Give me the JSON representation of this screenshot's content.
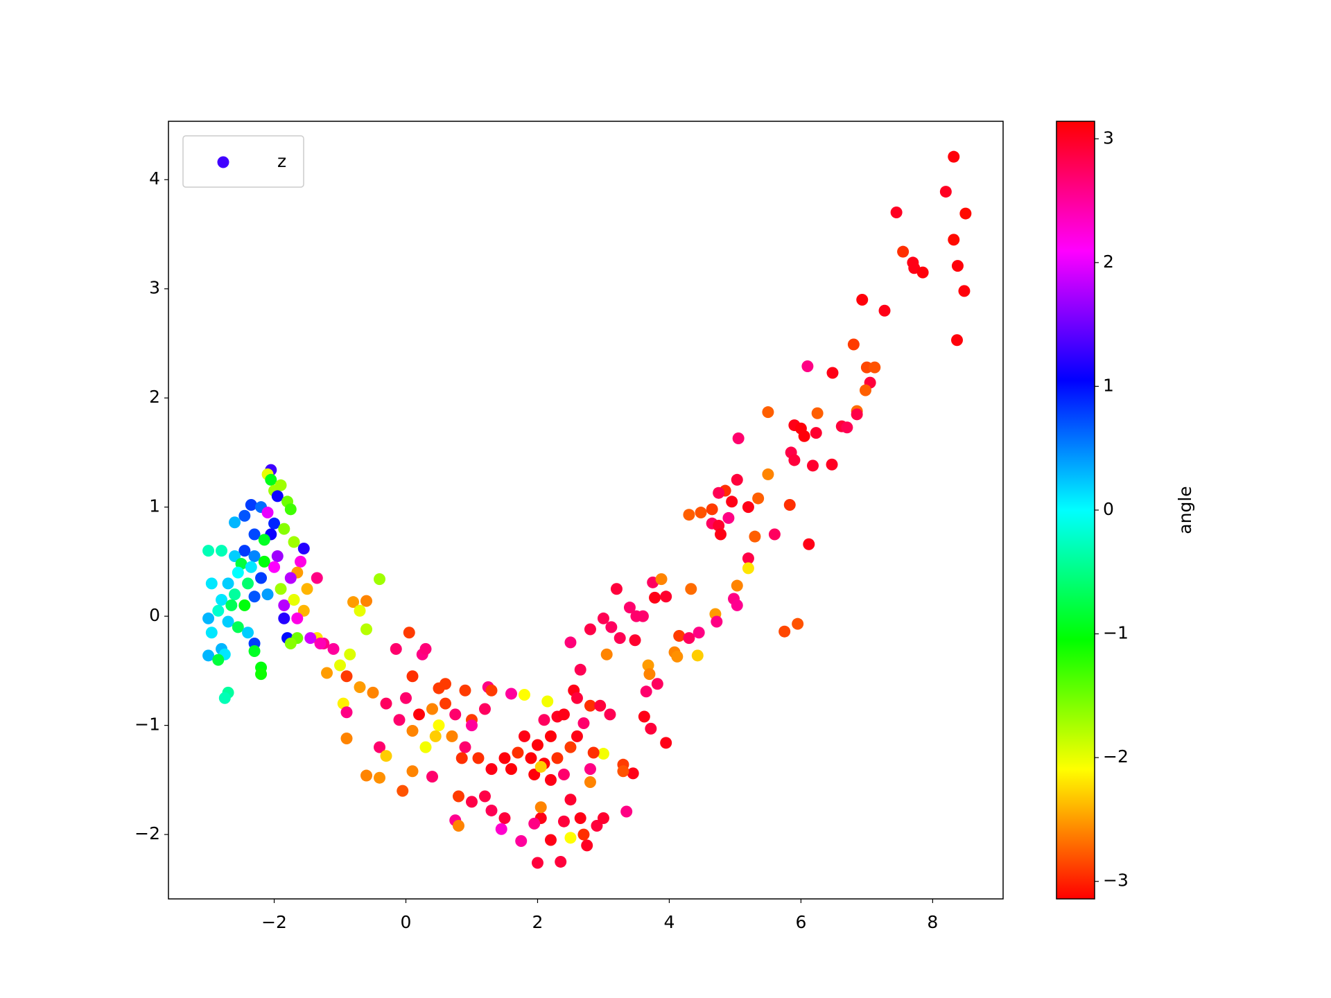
{
  "chart_data": {
    "type": "scatter",
    "legend": "upper left",
    "xlim": [
      -3.606,
      9.07
    ],
    "ylim": [
      -2.59,
      4.535
    ],
    "xticks": [
      {
        "value": -2,
        "label": "−2"
      },
      0,
      2,
      4,
      6,
      8
    ],
    "yticks": [
      {
        "value": -2,
        "label": "−2"
      },
      {
        "value": -1,
        "label": "−1"
      },
      0,
      1,
      2,
      3,
      4
    ],
    "colorbar": {
      "label": "angle",
      "colormap": "hsv",
      "clim": [
        -3.1416,
        3.1416
      ],
      "ticks": [
        {
          "value": -3,
          "label": "−3"
        },
        {
          "value": -2,
          "label": "−2"
        },
        {
          "value": -1,
          "label": "−1"
        },
        0,
        1,
        2,
        3
      ]
    },
    "series": [
      {
        "name": "z",
        "color": "#4000ff",
        "x": [
          8.32,
          8.2,
          8.5,
          7.45,
          8.32,
          7.55,
          7.7,
          7.72,
          7.85,
          8.38,
          8.48,
          6.93,
          7.27,
          8.37,
          6.8,
          6.1,
          6.48,
          7.0,
          7.12,
          7.05,
          6.98,
          5.5,
          6.85,
          6.25,
          6.85,
          5.9,
          6.62,
          6.7,
          6.0,
          6.23,
          6.05,
          5.05,
          5.85,
          5.9,
          6.47,
          6.18,
          5.5,
          5.03,
          4.85,
          4.75,
          5.35,
          4.95,
          4.65,
          5.2,
          5.83,
          4.3,
          4.48,
          4.9,
          4.65,
          4.75,
          4.78,
          5.6,
          5.3,
          6.12,
          5.2,
          5.2,
          5.03,
          4.98,
          5.03,
          3.75,
          3.88,
          4.33,
          3.78,
          3.95,
          3.2,
          3.4,
          3.5,
          3.6,
          4.7,
          4.72,
          5.95,
          5.75,
          3.0,
          3.12,
          2.8,
          3.25,
          3.48,
          2.5,
          4.15,
          4.3,
          4.45,
          4.08,
          4.12,
          4.43,
          3.05,
          3.68,
          3.7,
          3.82,
          3.65,
          2.65,
          3.95,
          3.62,
          3.72,
          2.55,
          2.6,
          2.15,
          1.8,
          1.6,
          1.25,
          1.3,
          0.9,
          0.6,
          0.5,
          0.1,
          0.05,
          -0.15,
          0.25,
          0.3,
          -0.4,
          -0.6,
          -0.8,
          -0.7,
          -0.6,
          2.1,
          2.3,
          2.4,
          2.8,
          2.95,
          3.1,
          2.7,
          2.2,
          2.0,
          1.8,
          1.7,
          1.5,
          1.9,
          2.1,
          2.3,
          2.5,
          2.6,
          1.6,
          1.95,
          2.2,
          2.4,
          2.05,
          1.3,
          1.1,
          0.9,
          0.7,
          0.5,
          0.3,
          0.1,
          -0.1,
          -0.3,
          -0.5,
          -0.7,
          -0.9,
          -1.0,
          -0.85,
          -1.1,
          -1.25,
          -1.35,
          -1.2,
          -0.95,
          -0.9,
          -0.9,
          -0.6,
          -0.4,
          -0.4,
          -0.05,
          -0.3,
          0.1,
          0.4,
          0.75,
          0.8,
          0.8,
          1.0,
          1.2,
          1.3,
          1.5,
          1.45,
          1.75,
          2.0,
          2.2,
          2.35,
          2.5,
          2.75,
          2.7,
          2.9,
          3.0,
          2.65,
          2.5,
          2.4,
          2.05,
          1.95,
          2.05,
          3.35,
          3.45,
          3.3,
          3.3,
          3.0,
          2.85,
          2.8,
          2.8,
          1.2,
          1.0,
          0.75,
          0.6,
          0.4,
          0.2,
          0,
          0.45,
          1.0,
          0.85,
          -2.05,
          -2.1,
          -2.05,
          -1.9,
          -2.0,
          -1.95,
          -1.8,
          -2.35,
          -2.2,
          -2.1,
          -1.75,
          -2.45,
          -2.6,
          -2.0,
          -1.85,
          -2.3,
          -2.05,
          -2.15,
          -1.7,
          -1.55,
          -2.45,
          -2.6,
          -2.8,
          -3.0,
          -2.3,
          -2.15,
          -1.95,
          -2.5,
          -2.35,
          -2.0,
          -1.6,
          -1.65,
          -1.75,
          -2.55,
          -2.7,
          -2.95,
          -2.4,
          -2.2,
          -2.6,
          -2.8,
          -2.3,
          -1.9,
          -1.5,
          -1.35,
          -2.1,
          -2.65,
          -2.85,
          -2.45,
          -1.85,
          -1.7,
          -1.55,
          -1.65,
          -1.85,
          -3.0,
          -2.7,
          -2.95,
          -2.55,
          -2.4,
          -1.8,
          -1.65,
          -1.75,
          -2.3,
          -2.3,
          -2.8,
          -2.75,
          -3.0,
          -2.85,
          -2.2,
          -2.2,
          -2.7,
          -2.75,
          -1.45,
          -1.3
        ],
        "values": [
          4.21,
          3.89,
          3.69,
          3.7,
          3.45,
          3.34,
          3.24,
          3.19,
          3.15,
          3.21,
          2.98,
          2.9,
          2.8,
          2.53,
          2.49,
          2.29,
          2.23,
          2.28,
          2.28,
          2.14,
          2.07,
          1.87,
          1.88,
          1.86,
          1.85,
          1.75,
          1.74,
          1.73,
          1.72,
          1.68,
          1.65,
          1.63,
          1.5,
          1.43,
          1.39,
          1.38,
          1.3,
          1.25,
          1.15,
          1.13,
          1.08,
          1.05,
          0.98,
          1.0,
          1.02,
          0.93,
          0.95,
          0.9,
          0.85,
          0.83,
          0.75,
          0.75,
          0.73,
          0.66,
          0.53,
          0.44,
          0.28,
          0.16,
          0.1,
          0.31,
          0.34,
          0.25,
          0.17,
          0.18,
          0.25,
          0.08,
          0,
          0,
          0.02,
          -0.05,
          -0.07,
          -0.14,
          -0.02,
          -0.1,
          -0.12,
          -0.2,
          -0.22,
          -0.24,
          -0.18,
          -0.2,
          -0.15,
          -0.33,
          -0.37,
          -0.36,
          -0.35,
          -0.45,
          -0.53,
          -0.62,
          -0.69,
          -0.49,
          -1.16,
          -0.92,
          -1.03,
          -0.68,
          -0.75,
          -0.78,
          -0.72,
          -0.71,
          -0.65,
          -0.68,
          -0.68,
          -0.62,
          -0.66,
          -0.55,
          -0.15,
          -0.3,
          -0.35,
          -0.3,
          0.34,
          0.14,
          0.13,
          0.05,
          -0.12,
          -0.95,
          -0.92,
          -0.9,
          -0.82,
          -0.82,
          -0.9,
          -0.98,
          -1.1,
          -1.18,
          -1.1,
          -1.25,
          -1.3,
          -1.3,
          -1.35,
          -1.3,
          -1.2,
          -1.1,
          -1.4,
          -1.45,
          -1.5,
          -1.45,
          -1.38,
          -1.4,
          -1.3,
          -1.2,
          -1.1,
          -1.0,
          -1.2,
          -1.05,
          -0.95,
          -0.8,
          -0.7,
          -0.65,
          -0.55,
          -0.45,
          -0.35,
          -0.3,
          -0.25,
          -0.2,
          -0.52,
          -0.8,
          -0.88,
          -1.12,
          -1.46,
          -1.2,
          -1.48,
          -1.6,
          -1.28,
          -1.42,
          -1.47,
          -1.87,
          -1.92,
          -1.65,
          -1.7,
          -1.65,
          -1.78,
          -1.85,
          -1.95,
          -2.06,
          -2.26,
          -2.05,
          -2.25,
          -2.03,
          -2.1,
          -2.0,
          -1.92,
          -1.85,
          -1.85,
          -1.68,
          -1.88,
          -1.85,
          -1.9,
          -1.75,
          -1.79,
          -1.44,
          -1.36,
          -1.42,
          -1.26,
          -1.25,
          -1.52,
          -1.4,
          -0.85,
          -0.95,
          -0.9,
          -0.8,
          -0.85,
          -0.9,
          -0.75,
          -1.1,
          -1.0,
          -1.3,
          1.34,
          1.3,
          1.25,
          1.2,
          1.15,
          1.1,
          1.05,
          1.02,
          1.0,
          0.95,
          0.98,
          0.92,
          0.86,
          0.85,
          0.8,
          0.75,
          0.75,
          0.7,
          0.68,
          0.62,
          0.6,
          0.55,
          0.6,
          0.6,
          0.55,
          0.5,
          0.55,
          0.48,
          0.45,
          0.45,
          0.5,
          0.4,
          0.35,
          0.4,
          0.3,
          0.3,
          0.3,
          0.35,
          0.2,
          0.15,
          0.18,
          0.25,
          0.25,
          0.35,
          0.2,
          0.1,
          0.05,
          0.1,
          0.1,
          0.15,
          0.05,
          -0.02,
          -0.02,
          -0.02,
          -0.05,
          -0.15,
          -0.1,
          -0.15,
          -0.2,
          -0.2,
          -0.25,
          -0.25,
          -0.32,
          -0.3,
          -0.35,
          -0.36,
          -0.4,
          -0.47,
          -0.53,
          -0.7,
          -0.75,
          -0.2,
          -0.25
        ],
        "c": [
          3.1,
          3.0,
          -3.1,
          3.0,
          -3.1,
          -2.95,
          3.05,
          3.05,
          3.1,
          3.1,
          3.1,
          3.1,
          3.05,
          3.1,
          -2.9,
          2.6,
          3.05,
          -2.85,
          -2.8,
          2.9,
          -2.75,
          -2.75,
          -2.7,
          -2.75,
          2.85,
          3.05,
          2.9,
          2.8,
          3.1,
          2.95,
          3.1,
          2.7,
          2.85,
          2.9,
          3.0,
          2.95,
          -2.6,
          2.9,
          -2.95,
          2.8,
          -2.75,
          3.05,
          -2.9,
          3.05,
          -2.95,
          -2.75,
          -2.8,
          2.6,
          2.75,
          2.95,
          3.05,
          2.75,
          -2.75,
          3.05,
          2.85,
          -2.2,
          -2.6,
          2.6,
          2.55,
          2.75,
          -2.6,
          -2.7,
          3.05,
          2.95,
          2.9,
          2.7,
          2.7,
          2.7,
          -2.5,
          2.6,
          -2.8,
          -2.85,
          2.8,
          2.75,
          2.85,
          2.8,
          2.95,
          2.65,
          -2.9,
          2.75,
          2.6,
          -2.6,
          -2.55,
          -2.3,
          -2.6,
          -2.5,
          -2.6,
          2.75,
          2.7,
          2.8,
          3.05,
          3.05,
          2.9,
          3.05,
          2.9,
          -2.05,
          -2.1,
          2.5,
          2.6,
          -2.9,
          -2.9,
          -2.9,
          -2.9,
          -2.95,
          -2.9,
          2.7,
          2.6,
          2.65,
          -1.7,
          -2.6,
          -2.5,
          -2.0,
          -1.8,
          2.75,
          3.0,
          3.05,
          -2.95,
          2.9,
          2.8,
          2.7,
          3.1,
          3.1,
          3.05,
          -2.95,
          3.1,
          3.1,
          3.1,
          -2.95,
          -2.9,
          3.05,
          3.1,
          3.1,
          3.05,
          2.7,
          -2.3,
          3.05,
          -2.95,
          2.7,
          -2.6,
          -2.1,
          -2.05,
          -2.6,
          2.7,
          2.75,
          -2.6,
          -2.5,
          -2.9,
          -2.0,
          -1.95,
          2.5,
          2.6,
          -2.2,
          -2.5,
          -2.15,
          2.6,
          -2.6,
          -2.6,
          2.7,
          -2.55,
          -2.8,
          -2.3,
          -2.6,
          2.7,
          2.55,
          -2.6,
          -2.9,
          2.85,
          2.85,
          2.8,
          2.9,
          2.3,
          2.5,
          2.9,
          3.05,
          2.9,
          -2.1,
          3.0,
          -2.95,
          2.9,
          2.95,
          3.05,
          2.95,
          2.9,
          3.05,
          2.6,
          -2.6,
          2.6,
          3.05,
          -2.9,
          -2.8,
          -2.05,
          -2.95,
          -2.6,
          2.6,
          2.75,
          -2.9,
          2.7,
          -2.9,
          -2.6,
          3.1,
          2.7,
          -2.3,
          2.5,
          -2.95,
          1.3,
          -2.0,
          -0.95,
          -1.7,
          -1.7,
          1.1,
          -1.5,
          0.8,
          0.6,
          2.0,
          -1.3,
          0.7,
          0.3,
          0.9,
          -1.6,
          0.75,
          1.1,
          -0.9,
          -1.7,
          1.2,
          0.8,
          0.2,
          -0.3,
          -0.3,
          0.5,
          -1.0,
          1.7,
          -0.8,
          0.1,
          2.1,
          2.2,
          -2.5,
          1.8,
          0,
          0.2,
          0.1,
          -0.6,
          0.8,
          -0.4,
          0.1,
          0.7,
          -1.7,
          -2.4,
          2.6,
          0.4,
          -0.7,
          -0.2,
          -1.0,
          1.8,
          -2.0,
          -2.4,
          2.2,
          1.2,
          0.3,
          0.2,
          0.1,
          -0.7,
          0.2,
          1.0,
          -1.5,
          -1.6,
          0.8,
          -0.9,
          0.3,
          0.1,
          0.3,
          -0.8,
          -1.0,
          -1.1,
          -0.4,
          -0.3,
          1.9,
          2.4
        ]
      }
    ]
  }
}
